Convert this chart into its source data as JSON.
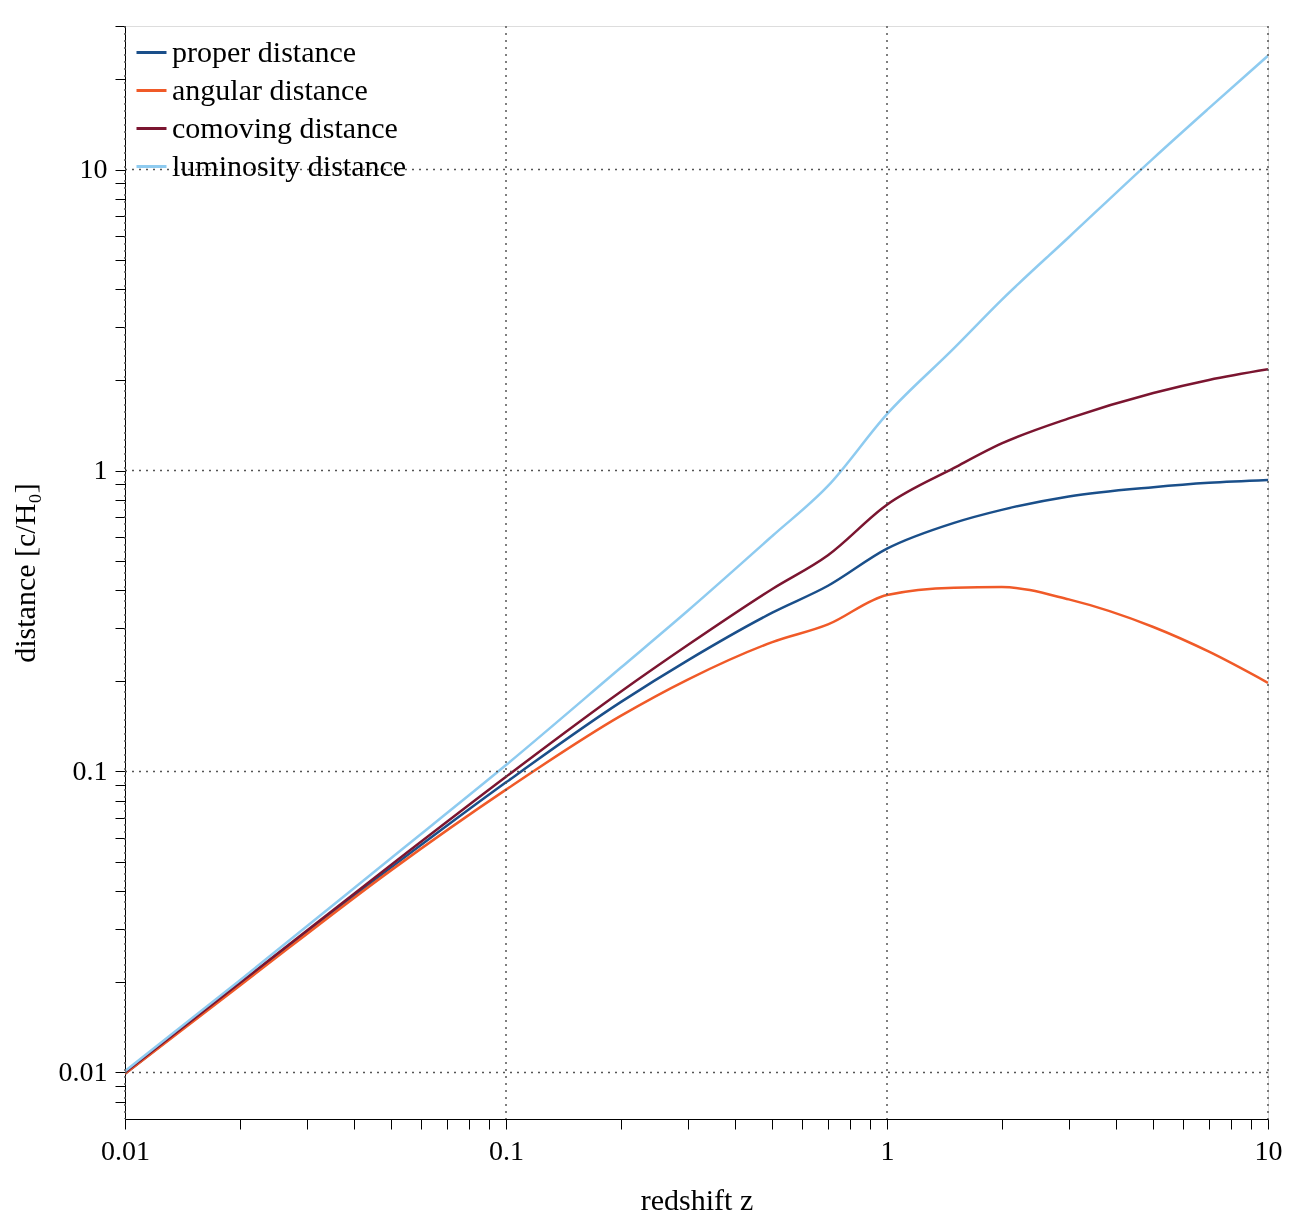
{
  "chart_data": {
    "type": "line",
    "xlabel": "redshift z",
    "ylabel": "distance [c/H₀]",
    "log": "xy",
    "grid": true,
    "legend": "top left",
    "line_style": "solid",
    "marker": "none",
    "x": [
      0.01,
      0.02,
      0.05,
      0.1,
      0.2,
      0.3,
      0.5,
      0.7,
      1,
      1.5,
      2,
      3,
      5,
      7,
      10
    ],
    "xlim": [
      0.01,
      10
    ],
    "ylim": [
      0.007,
      30
    ],
    "xticks": [
      0.01,
      {
        "value": 0.02,
        "label": null
      },
      {
        "value": 0.03,
        "label": null
      },
      {
        "value": 0.04,
        "label": null
      },
      {
        "value": 0.05,
        "label": null
      },
      {
        "value": 0.06,
        "label": null
      },
      {
        "value": 0.07,
        "label": null
      },
      {
        "value": 0.08,
        "label": null
      },
      {
        "value": 0.09,
        "label": null
      },
      0.1,
      {
        "value": 0.2,
        "label": null
      },
      {
        "value": 0.3,
        "label": null
      },
      {
        "value": 0.4,
        "label": null
      },
      {
        "value": 0.5,
        "label": null
      },
      {
        "value": 0.6,
        "label": null
      },
      {
        "value": 0.7,
        "label": null
      },
      {
        "value": 0.8,
        "label": null
      },
      {
        "value": 0.9,
        "label": null
      },
      1,
      {
        "value": 2,
        "label": null
      },
      {
        "value": 3,
        "label": null
      },
      {
        "value": 4,
        "label": null
      },
      {
        "value": 5,
        "label": null
      },
      {
        "value": 6,
        "label": null
      },
      {
        "value": 7,
        "label": null
      },
      {
        "value": 8,
        "label": null
      },
      {
        "value": 9,
        "label": null
      },
      10
    ],
    "yticks": [
      {
        "value": 0.008,
        "label": null
      },
      {
        "value": 0.009,
        "label": null
      },
      0.01,
      {
        "value": 0.02,
        "label": null
      },
      {
        "value": 0.03,
        "label": null
      },
      {
        "value": 0.04,
        "label": null
      },
      {
        "value": 0.05,
        "label": null
      },
      {
        "value": 0.06,
        "label": null
      },
      {
        "value": 0.07,
        "label": null
      },
      {
        "value": 0.08,
        "label": null
      },
      {
        "value": 0.09,
        "label": null
      },
      0.1,
      {
        "value": 0.2,
        "label": null
      },
      {
        "value": 0.3,
        "label": null
      },
      {
        "value": 0.4,
        "label": null
      },
      {
        "value": 0.5,
        "label": null
      },
      {
        "value": 0.6,
        "label": null
      },
      {
        "value": 0.7,
        "label": null
      },
      {
        "value": 0.8,
        "label": null
      },
      {
        "value": 0.9,
        "label": null
      },
      1,
      {
        "value": 2,
        "label": null
      },
      {
        "value": 3,
        "label": null
      },
      {
        "value": 4,
        "label": null
      },
      {
        "value": 5,
        "label": null
      },
      {
        "value": 6,
        "label": null
      },
      {
        "value": 7,
        "label": null
      },
      {
        "value": 8,
        "label": null
      },
      {
        "value": 9,
        "label": null
      },
      10,
      {
        "value": 20,
        "label": null
      },
      {
        "value": 30,
        "label": null
      }
    ],
    "series": [
      {
        "name": "proper distance",
        "color": "#1a4f8a",
        "values": [
          0.0099,
          0.0197,
          0.048,
          0.092,
          0.17,
          0.234,
          0.337,
          0.414,
          0.55,
          0.67,
          0.74,
          0.82,
          0.88,
          0.91,
          0.93
        ]
      },
      {
        "name": "angular distance",
        "color": "#f05a28",
        "values": [
          0.0099,
          0.0194,
          0.047,
          0.087,
          0.153,
          0.202,
          0.269,
          0.308,
          0.386,
          0.408,
          0.41,
          0.373,
          0.302,
          0.25,
          0.197
        ]
      },
      {
        "name": "comoving distance",
        "color": "#7b1530",
        "values": [
          0.01,
          0.0198,
          0.049,
          0.096,
          0.184,
          0.263,
          0.404,
          0.523,
          0.77,
          1.02,
          1.23,
          1.49,
          1.81,
          2.0,
          2.17
        ]
      },
      {
        "name": "luminosity distance",
        "color": "#8ecbf0",
        "values": [
          0.0101,
          0.0202,
          0.0516,
          0.105,
          0.221,
          0.342,
          0.606,
          0.889,
          1.54,
          2.55,
          3.69,
          5.96,
          10.9,
          16.0,
          23.9
        ]
      }
    ]
  }
}
